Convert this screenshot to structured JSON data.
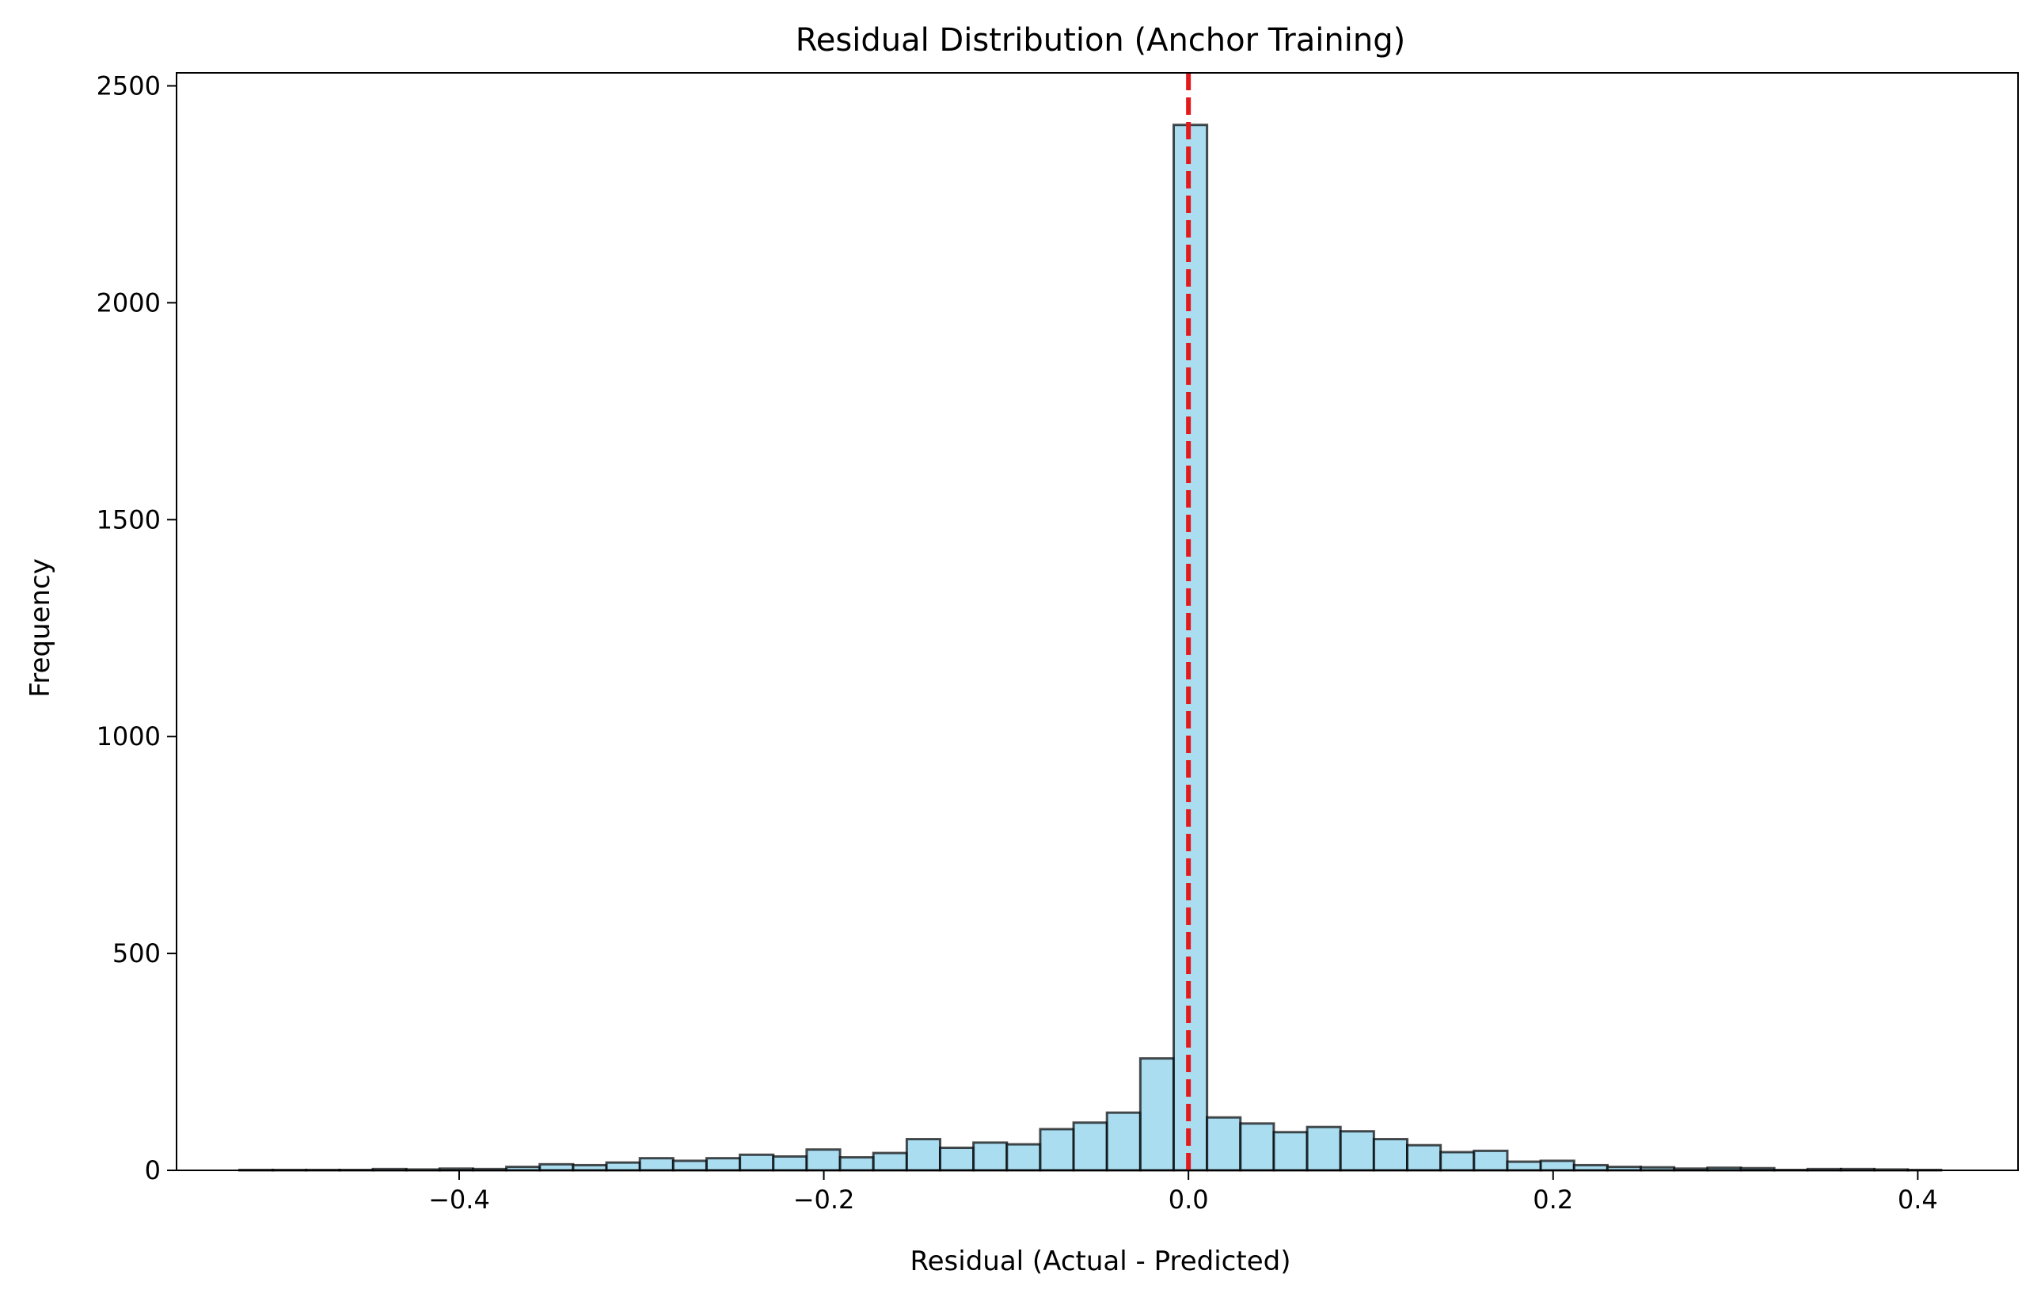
{
  "chart_data": {
    "type": "bar",
    "subtype": "histogram",
    "title": "Residual Distribution (Anchor Training)",
    "xlabel": "Residual (Actual - Predicted)",
    "ylabel": "Frequency",
    "xlim": [
      -0.555,
      0.455
    ],
    "ylim": [
      0,
      2530
    ],
    "grid": false,
    "legend": "none",
    "bin_width": 0.0183,
    "bins_start": [
      -0.5205,
      -0.5022,
      -0.4839,
      -0.4656,
      -0.4473,
      -0.429,
      -0.4107,
      -0.3924,
      -0.3741,
      -0.3558,
      -0.3375,
      -0.3192,
      -0.3009,
      -0.2826,
      -0.2643,
      -0.246,
      -0.2277,
      -0.2094,
      -0.1911,
      -0.1728,
      -0.1545,
      -0.1362,
      -0.1179,
      -0.0996,
      -0.0813,
      -0.063,
      -0.0447,
      -0.0264,
      -0.0081,
      0.0102,
      0.0285,
      0.0468,
      0.0651,
      0.0834,
      0.1017,
      0.12,
      0.1383,
      0.1566,
      0.1749,
      0.1932,
      0.2115,
      0.2298,
      0.2481,
      0.2664,
      0.2847,
      0.303,
      0.3213,
      0.3396,
      0.3579,
      0.3762,
      0.3945
    ],
    "frequencies": [
      1,
      1,
      1,
      1,
      3,
      2,
      4,
      3,
      8,
      14,
      12,
      18,
      28,
      22,
      28,
      36,
      32,
      48,
      30,
      40,
      72,
      52,
      64,
      60,
      95,
      110,
      133,
      258,
      2410,
      122,
      108,
      88,
      100,
      90,
      72,
      58,
      42,
      45,
      20,
      22,
      12,
      8,
      7,
      4,
      6,
      5,
      1,
      3,
      3,
      2,
      1
    ],
    "tick_values_x": [
      -0.4,
      -0.2,
      0.0,
      0.2,
      0.4
    ],
    "tick_labels_x": [
      "−0.4",
      "−0.2",
      "0.0",
      "0.2",
      "0.4"
    ],
    "tick_values_y": [
      0,
      500,
      1000,
      1500,
      2000,
      2500
    ],
    "tick_labels_y": [
      "0",
      "500",
      "1000",
      "1500",
      "2000",
      "2500"
    ],
    "reference_line": {
      "x": 0.0,
      "style": "dashed",
      "color": "#e31a1c"
    },
    "colors": {
      "bar_fill": "#87ceeb",
      "bar_edge": "#000000",
      "axis": "#000000"
    }
  }
}
